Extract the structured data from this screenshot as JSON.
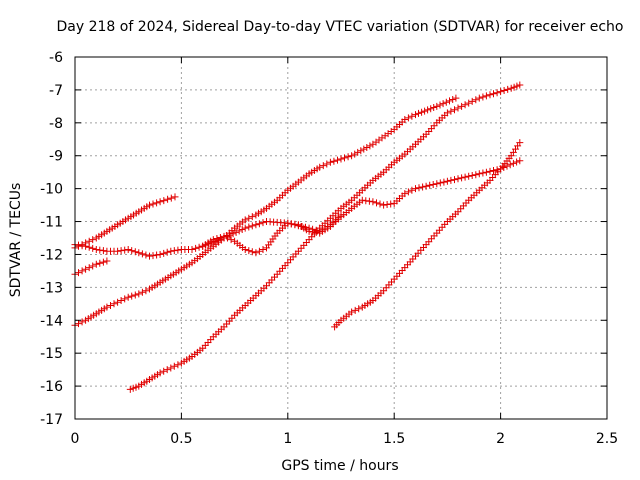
{
  "chart_data": {
    "type": "scatter",
    "title": "Day 218 of 2024, Sidereal Day-to-day VTEC variation (SDTVAR) for receiver echo",
    "xlabel": "GPS time / hours",
    "ylabel": "SDTVAR / TECUs",
    "xlim": [
      0,
      2.5
    ],
    "ylim": [
      -17,
      -6
    ],
    "xticks": [
      0,
      0.5,
      1,
      1.5,
      2,
      2.5
    ],
    "xtick_labels": [
      "0",
      "0.5",
      "1",
      "1.5",
      "2",
      "2.5"
    ],
    "yticks": [
      -17,
      -16,
      -15,
      -14,
      -13,
      -12,
      -11,
      -10,
      -9,
      -8,
      -7,
      -6
    ],
    "ytick_labels": [
      "-17",
      "-16",
      "-15",
      "-14",
      "-13",
      "-12",
      "-11",
      "-10",
      "-9",
      "-8",
      "-7",
      "-6"
    ],
    "grid": true,
    "marker": "plus",
    "color": "#e00000",
    "series": [
      {
        "points": [
          [
            0,
            -11.8
          ],
          [
            0.05,
            -11.65
          ],
          [
            0.1,
            -11.5
          ],
          [
            0.15,
            -11.3
          ],
          [
            0.2,
            -11.1
          ],
          [
            0.25,
            -10.9
          ],
          [
            0.3,
            -10.7
          ],
          [
            0.35,
            -10.5
          ],
          [
            0.4,
            -10.4
          ],
          [
            0.47,
            -10.25
          ]
        ]
      },
      {
        "points": [
          [
            0,
            -12.6
          ],
          [
            0.05,
            -12.45
          ],
          [
            0.1,
            -12.3
          ],
          [
            0.15,
            -12.2
          ]
        ]
      },
      {
        "points": [
          [
            0,
            -11.7
          ],
          [
            0.05,
            -11.75
          ],
          [
            0.1,
            -11.85
          ],
          [
            0.15,
            -11.9
          ],
          [
            0.2,
            -11.9
          ],
          [
            0.25,
            -11.85
          ],
          [
            0.3,
            -11.95
          ],
          [
            0.35,
            -12.05
          ],
          [
            0.4,
            -12.0
          ],
          [
            0.45,
            -11.9
          ],
          [
            0.5,
            -11.85
          ],
          [
            0.55,
            -11.85
          ],
          [
            0.6,
            -11.75
          ],
          [
            0.65,
            -11.55
          ],
          [
            0.7,
            -11.45
          ],
          [
            0.75,
            -11.6
          ],
          [
            0.8,
            -11.85
          ],
          [
            0.85,
            -11.95
          ],
          [
            0.9,
            -11.8
          ],
          [
            0.95,
            -11.35
          ],
          [
            1.0,
            -11.05
          ],
          [
            1.05,
            -11.1
          ],
          [
            1.1,
            -11.3
          ],
          [
            1.15,
            -11.35
          ],
          [
            1.2,
            -11.15
          ],
          [
            1.25,
            -10.85
          ],
          [
            1.3,
            -10.6
          ],
          [
            1.35,
            -10.35
          ],
          [
            1.4,
            -10.4
          ],
          [
            1.45,
            -10.5
          ],
          [
            1.5,
            -10.45
          ],
          [
            1.55,
            -10.15
          ],
          [
            1.6,
            -10.0
          ],
          [
            1.7,
            -9.85
          ],
          [
            1.8,
            -9.7
          ],
          [
            1.9,
            -9.55
          ],
          [
            2.0,
            -9.4
          ],
          [
            2.09,
            -9.15
          ]
        ]
      },
      {
        "points": [
          [
            0,
            -14.15
          ],
          [
            0.05,
            -14.0
          ],
          [
            0.1,
            -13.8
          ],
          [
            0.15,
            -13.6
          ],
          [
            0.2,
            -13.45
          ],
          [
            0.25,
            -13.3
          ],
          [
            0.3,
            -13.2
          ],
          [
            0.35,
            -13.05
          ],
          [
            0.4,
            -12.85
          ],
          [
            0.45,
            -12.65
          ],
          [
            0.5,
            -12.45
          ],
          [
            0.55,
            -12.25
          ],
          [
            0.6,
            -12.0
          ],
          [
            0.65,
            -11.75
          ],
          [
            0.7,
            -11.5
          ],
          [
            0.75,
            -11.2
          ],
          [
            0.8,
            -10.95
          ],
          [
            0.85,
            -10.8
          ],
          [
            0.9,
            -10.6
          ],
          [
            0.95,
            -10.35
          ],
          [
            1.0,
            -10.05
          ],
          [
            1.05,
            -9.8
          ],
          [
            1.1,
            -9.55
          ],
          [
            1.15,
            -9.35
          ],
          [
            1.2,
            -9.2
          ],
          [
            1.3,
            -9.0
          ],
          [
            1.4,
            -8.65
          ],
          [
            1.5,
            -8.2
          ],
          [
            1.55,
            -7.9
          ],
          [
            1.6,
            -7.75
          ],
          [
            1.7,
            -7.5
          ],
          [
            1.79,
            -7.25
          ]
        ]
      },
      {
        "points": [
          [
            0.26,
            -16.1
          ],
          [
            0.3,
            -16.0
          ],
          [
            0.35,
            -15.8
          ],
          [
            0.4,
            -15.6
          ],
          [
            0.45,
            -15.45
          ],
          [
            0.5,
            -15.3
          ],
          [
            0.55,
            -15.1
          ],
          [
            0.6,
            -14.85
          ],
          [
            0.65,
            -14.5
          ],
          [
            0.7,
            -14.2
          ],
          [
            0.75,
            -13.85
          ],
          [
            0.8,
            -13.55
          ],
          [
            0.85,
            -13.25
          ],
          [
            0.9,
            -12.95
          ],
          [
            0.95,
            -12.6
          ],
          [
            1.0,
            -12.25
          ],
          [
            1.05,
            -11.9
          ],
          [
            1.1,
            -11.55
          ],
          [
            1.15,
            -11.2
          ],
          [
            1.2,
            -10.9
          ],
          [
            1.25,
            -10.6
          ],
          [
            1.3,
            -10.35
          ],
          [
            1.35,
            -10.05
          ],
          [
            1.4,
            -9.75
          ],
          [
            1.45,
            -9.5
          ],
          [
            1.5,
            -9.2
          ],
          [
            1.55,
            -8.95
          ],
          [
            1.6,
            -8.65
          ],
          [
            1.65,
            -8.35
          ],
          [
            1.7,
            -8.0
          ],
          [
            1.75,
            -7.7
          ],
          [
            1.8,
            -7.55
          ],
          [
            1.85,
            -7.4
          ],
          [
            1.9,
            -7.25
          ],
          [
            1.95,
            -7.15
          ],
          [
            2.0,
            -7.05
          ],
          [
            2.05,
            -6.95
          ],
          [
            2.09,
            -6.85
          ]
        ]
      },
      {
        "points": [
          [
            0.6,
            -11.75
          ],
          [
            0.7,
            -11.5
          ],
          [
            0.8,
            -11.2
          ],
          [
            0.9,
            -11.0
          ],
          [
            1.0,
            -11.05
          ],
          [
            1.1,
            -11.2
          ],
          [
            1.15,
            -11.3
          ],
          [
            1.2,
            -11.1
          ],
          [
            1.25,
            -10.8
          ]
        ]
      },
      {
        "points": [
          [
            1.22,
            -14.2
          ],
          [
            1.25,
            -14.0
          ],
          [
            1.3,
            -13.75
          ],
          [
            1.35,
            -13.6
          ],
          [
            1.4,
            -13.4
          ],
          [
            1.45,
            -13.1
          ],
          [
            1.5,
            -12.75
          ],
          [
            1.55,
            -12.4
          ],
          [
            1.6,
            -12.05
          ],
          [
            1.65,
            -11.7
          ],
          [
            1.7,
            -11.35
          ],
          [
            1.75,
            -11.0
          ],
          [
            1.8,
            -10.7
          ],
          [
            1.85,
            -10.35
          ],
          [
            1.9,
            -10.05
          ],
          [
            1.95,
            -9.75
          ],
          [
            2.0,
            -9.4
          ],
          [
            2.05,
            -9.0
          ],
          [
            2.09,
            -8.6
          ]
        ]
      }
    ]
  }
}
